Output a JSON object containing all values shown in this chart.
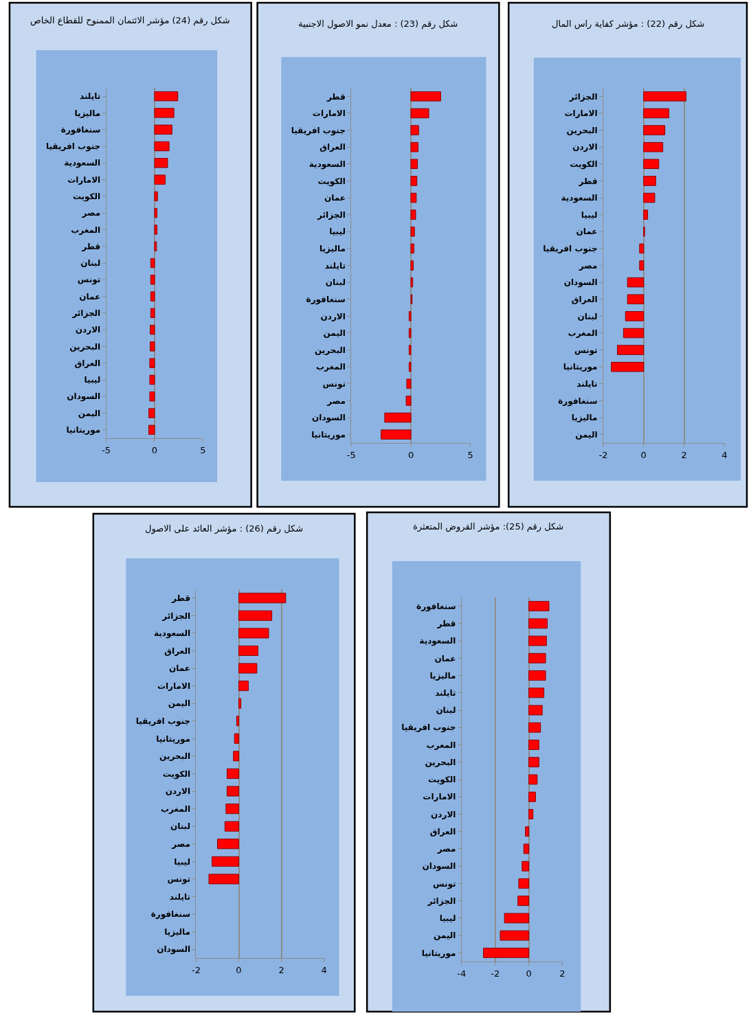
{
  "chart_data": [
    {
      "type": "bar",
      "orientation": "horizontal",
      "title": "شكل رقم (22) : مؤشر كفاية راس المال",
      "categories": [
        "الجزائر",
        "الامارات",
        "البحرين",
        "الاردن",
        "الكويت",
        "قطر",
        "السعودية",
        "ليبيا",
        "عمان",
        "جنوب افريقيا",
        "مصر",
        "السودان",
        "العراق",
        "لبنان",
        "المغرب",
        "تونس",
        "موريتانيا",
        "تايلند",
        "سنغافورة",
        "ماليزيا",
        "اليمن"
      ],
      "values": [
        2.1,
        1.25,
        1.05,
        0.95,
        0.75,
        0.6,
        0.55,
        0.2,
        0.05,
        -0.2,
        -0.2,
        -0.8,
        -0.8,
        -0.9,
        -1.0,
        -1.3,
        -1.6,
        null,
        null,
        null,
        null
      ],
      "color": "#ff0000",
      "xlim": [
        -2,
        4
      ],
      "xticks": [
        -2,
        0,
        2,
        4
      ],
      "grid": "x"
    },
    {
      "type": "bar",
      "orientation": "horizontal",
      "title": "شكل رقم (23) : معدل نمو الاصول الاجنبية",
      "categories": [
        "قطر",
        "الامارات",
        "جنوب افريقيا",
        "العراق",
        "السعودية",
        "الكويت",
        "عمان",
        "الجزائر",
        "ليبيا",
        "ماليزيا",
        "تايلند",
        "لبنان",
        "سنغافورة",
        "الاردن",
        "اليمن",
        "البحرين",
        "المغرب",
        "تونس",
        "مصر",
        "السودان",
        "موريتانيا"
      ],
      "values": [
        2.5,
        1.5,
        0.65,
        0.6,
        0.55,
        0.5,
        0.45,
        0.4,
        0.3,
        0.25,
        0.2,
        0.15,
        0.1,
        -0.15,
        -0.15,
        -0.15,
        -0.15,
        -0.35,
        -0.4,
        -2.2,
        -2.5
      ],
      "color": "#ff0000",
      "xlim": [
        -5,
        5
      ],
      "xticks": [
        -5,
        0,
        5
      ],
      "grid": "x"
    },
    {
      "type": "bar",
      "orientation": "horizontal",
      "title": "شكل رقم (24) مؤشر الائتمان الممنوح للقطاع الخاص",
      "categories": [
        "تايلند",
        "ماليزيا",
        "سنغافورة",
        "جنوب افريقيا",
        "السعودية",
        "الامارات",
        "الكويت",
        "مصر",
        "المغرب",
        "قطر",
        "لبنان",
        "تونس",
        "عمان",
        "الجزائر",
        "الاردن",
        "البحرين",
        "العراق",
        "ليبيا",
        "السودان",
        "اليمن",
        "موريتانيا"
      ],
      "values": [
        2.4,
        2.0,
        1.8,
        1.5,
        1.35,
        1.1,
        0.3,
        0.25,
        0.25,
        0.2,
        -0.4,
        -0.4,
        -0.4,
        -0.4,
        -0.45,
        -0.45,
        -0.5,
        -0.5,
        -0.5,
        -0.6,
        -0.6
      ],
      "color": "#ff0000",
      "xlim": [
        -5,
        5
      ],
      "xticks": [
        -5,
        0,
        5
      ],
      "grid": "x"
    },
    {
      "type": "bar",
      "orientation": "horizontal",
      "title": "شكل رقم (25): مؤشر القروض المتعثرة",
      "categories": [
        "سنغافورة",
        "قطر",
        "السعودية",
        "عمان",
        "ماليزيا",
        "تايلند",
        "لبنان",
        "جنوب افريقيا",
        "المغرب",
        "البحرين",
        "الكويت",
        "الامارات",
        "الاردن",
        "العراق",
        "مصر",
        "السودان",
        "تونس",
        "الجزائر",
        "ليبيا",
        "اليمن",
        "موريتانيا"
      ],
      "values": [
        1.2,
        1.1,
        1.05,
        1.0,
        1.0,
        0.9,
        0.8,
        0.7,
        0.6,
        0.6,
        0.5,
        0.4,
        0.25,
        -0.2,
        -0.3,
        -0.4,
        -0.6,
        -0.65,
        -1.45,
        -1.7,
        -2.7
      ],
      "color": "#ff0000",
      "xlim": [
        -4,
        2
      ],
      "xticks": [
        -4,
        -2,
        0,
        2
      ],
      "grid": "x"
    },
    {
      "type": "bar",
      "orientation": "horizontal",
      "title": "شكل رقم (26) : مؤشر العائد على الاصول",
      "categories": [
        "قطر",
        "الجزائر",
        "السعودية",
        "العراق",
        "عمان",
        "الامارات",
        "اليمن",
        "جنوب افريقيا",
        "موريتانيا",
        "البحرين",
        "الكويت",
        "الاردن",
        "المغرب",
        "لبنان",
        "مصر",
        "ليبيا",
        "تونس",
        "تايلند",
        "سنغافورة",
        "ماليزيا",
        "السودان"
      ],
      "values": [
        2.2,
        1.55,
        1.4,
        0.9,
        0.85,
        0.45,
        0.1,
        -0.1,
        -0.2,
        -0.25,
        -0.55,
        -0.55,
        -0.6,
        -0.65,
        -1.0,
        -1.25,
        -1.4,
        null,
        null,
        null,
        null
      ],
      "color": "#ff0000",
      "xlim": [
        -2,
        4
      ],
      "xticks": [
        -2,
        0,
        2,
        4
      ],
      "grid": "x"
    }
  ]
}
